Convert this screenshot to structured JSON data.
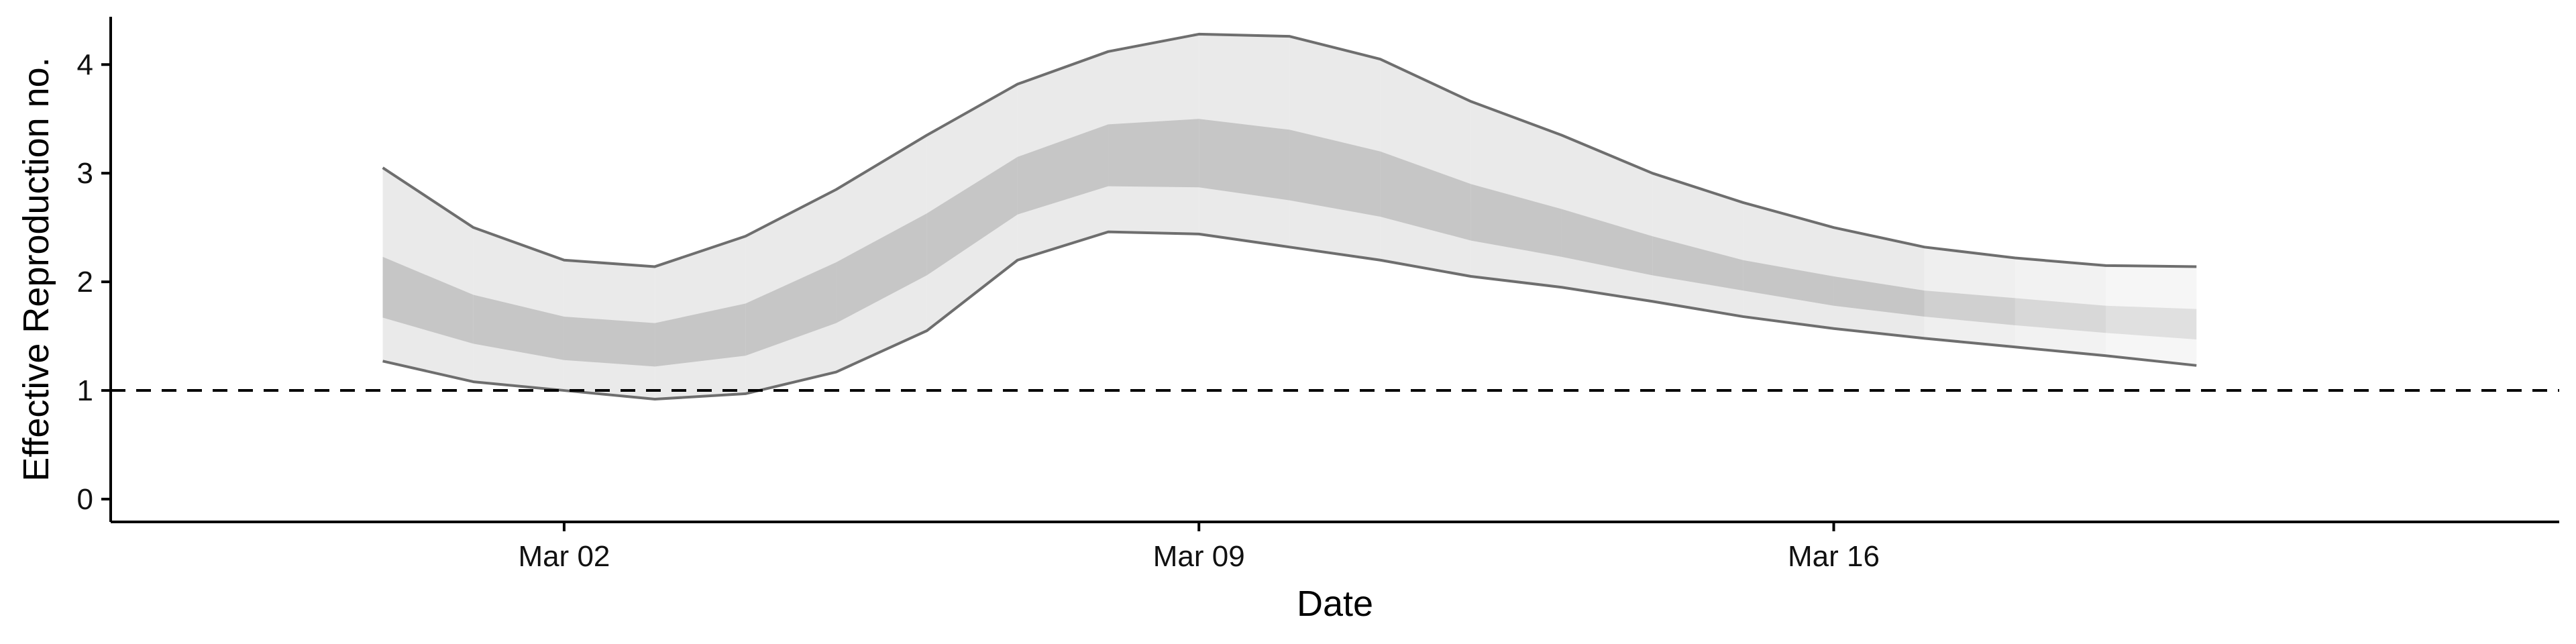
{
  "chart_data": {
    "type": "area",
    "xlabel": "Date",
    "ylabel": "Effective Reproduction no.",
    "x": [
      "2020-02-29",
      "2020-03-01",
      "2020-03-02",
      "2020-03-03",
      "2020-03-04",
      "2020-03-05",
      "2020-03-06",
      "2020-03-07",
      "2020-03-08",
      "2020-03-09",
      "2020-03-10",
      "2020-03-11",
      "2020-03-12",
      "2020-03-13",
      "2020-03-14",
      "2020-03-15",
      "2020-03-16",
      "2020-03-17",
      "2020-03-18",
      "2020-03-19",
      "2020-03-20",
      "2020-03-21"
    ],
    "outer_upper": [
      3.05,
      2.5,
      2.2,
      2.14,
      2.42,
      2.85,
      3.35,
      3.82,
      4.12,
      4.28,
      4.26,
      4.05,
      3.66,
      3.35,
      3.0,
      2.73,
      2.5,
      2.32,
      2.22,
      2.15,
      2.14,
      null
    ],
    "outer_lower": [
      1.27,
      1.08,
      1.0,
      0.92,
      0.97,
      1.17,
      1.55,
      2.2,
      2.46,
      2.44,
      2.32,
      2.2,
      2.05,
      1.95,
      1.82,
      1.68,
      1.57,
      1.48,
      1.4,
      1.32,
      1.23,
      null
    ],
    "inner_upper": [
      2.23,
      1.88,
      1.68,
      1.62,
      1.8,
      2.18,
      2.63,
      3.15,
      3.45,
      3.5,
      3.4,
      3.2,
      2.9,
      2.67,
      2.42,
      2.2,
      2.05,
      1.92,
      1.85,
      1.78,
      1.75,
      null
    ],
    "inner_lower": [
      1.67,
      1.43,
      1.28,
      1.22,
      1.32,
      1.62,
      2.06,
      2.62,
      2.88,
      2.87,
      2.75,
      2.6,
      2.38,
      2.23,
      2.06,
      1.92,
      1.78,
      1.68,
      1.6,
      1.53,
      1.47,
      null
    ],
    "reference_line": 1,
    "xticks": [
      {
        "date": "2020-03-02",
        "label": "Mar 02"
      },
      {
        "date": "2020-03-09",
        "label": "Mar 09"
      },
      {
        "date": "2020-03-16",
        "label": "Mar 16"
      }
    ],
    "yticks": [
      {
        "value": 0,
        "label": "0"
      },
      {
        "value": 1,
        "label": "1"
      },
      {
        "value": 2,
        "label": "2"
      },
      {
        "value": 3,
        "label": "3"
      },
      {
        "value": 4,
        "label": "4"
      }
    ],
    "xlim": [
      "2020-02-26",
      "2020-03-24"
    ],
    "ylim": [
      -0.21,
      4.44
    ],
    "grid": false,
    "legend": "none",
    "colors": {
      "outer_band": "#eaeaea",
      "inner_band": "#c6c6c6",
      "outline": "#6e6e6e",
      "reference": "#000000"
    }
  }
}
